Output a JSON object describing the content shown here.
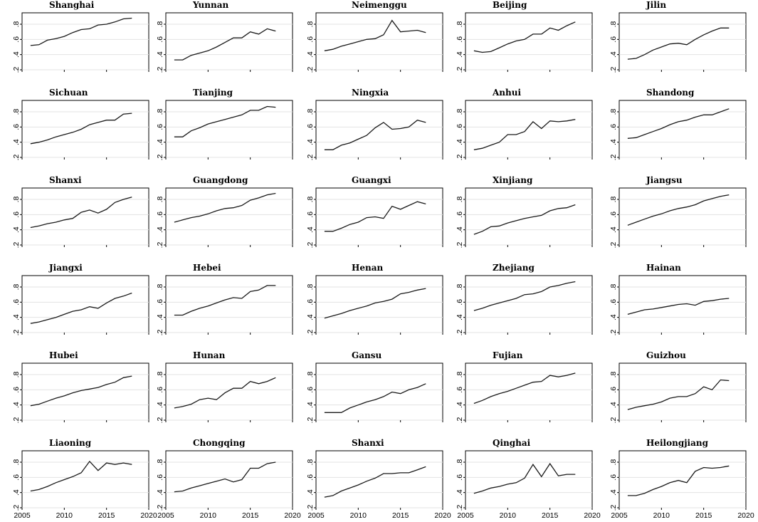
{
  "chart_data": {
    "type": "line",
    "layout": "small-multiples",
    "rows": 6,
    "cols": 5,
    "grid": true,
    "xlim": [
      2005,
      2020
    ],
    "ylim": [
      0.2,
      0.95
    ],
    "x_ticks": [
      2005,
      2010,
      2015,
      2020
    ],
    "x_tick_labels": [
      "2005",
      "2010",
      "2015",
      "2020"
    ],
    "y_ticks": [
      0.2,
      0.4,
      0.6,
      0.8
    ],
    "y_tick_labels": [
      ".2",
      ".4",
      ".6",
      ".8"
    ],
    "x": [
      2006,
      2007,
      2008,
      2009,
      2010,
      2011,
      2012,
      2013,
      2014,
      2015,
      2016,
      2017,
      2018
    ],
    "panels": [
      {
        "name": "Shanghai",
        "values": [
          0.52,
          0.53,
          0.59,
          0.61,
          0.64,
          0.69,
          0.73,
          0.74,
          0.79,
          0.8,
          0.83,
          0.87,
          0.88
        ]
      },
      {
        "name": "Yunnan",
        "values": [
          0.33,
          0.33,
          0.39,
          0.42,
          0.45,
          0.5,
          0.56,
          0.62,
          0.62,
          0.7,
          0.67,
          0.74,
          0.71
        ]
      },
      {
        "name": "Neimenggu",
        "values": [
          0.45,
          0.47,
          0.51,
          0.54,
          0.57,
          0.6,
          0.61,
          0.66,
          0.85,
          0.7,
          0.71,
          0.72,
          0.69
        ]
      },
      {
        "name": "Beijing",
        "values": [
          0.45,
          0.43,
          0.44,
          0.49,
          0.54,
          0.58,
          0.6,
          0.67,
          0.67,
          0.75,
          0.72,
          0.78,
          0.83
        ]
      },
      {
        "name": "Jilin",
        "values": [
          0.34,
          0.35,
          0.4,
          0.46,
          0.5,
          0.54,
          0.55,
          0.53,
          0.6,
          0.66,
          0.71,
          0.75,
          0.75
        ]
      },
      {
        "name": "Sichuan",
        "values": [
          0.38,
          0.4,
          0.43,
          0.47,
          0.5,
          0.53,
          0.57,
          0.63,
          0.66,
          0.69,
          0.69,
          0.77,
          0.78
        ]
      },
      {
        "name": "Tianjing",
        "values": [
          0.47,
          0.47,
          0.55,
          0.59,
          0.64,
          0.67,
          0.7,
          0.73,
          0.76,
          0.82,
          0.82,
          0.87,
          0.86
        ]
      },
      {
        "name": "Ningxia",
        "values": [
          0.3,
          0.3,
          0.36,
          0.39,
          0.44,
          0.49,
          0.59,
          0.66,
          0.57,
          0.58,
          0.6,
          0.69,
          0.66
        ]
      },
      {
        "name": "Anhui",
        "values": [
          0.3,
          0.32,
          0.36,
          0.4,
          0.5,
          0.5,
          0.54,
          0.67,
          0.58,
          0.68,
          0.67,
          0.68,
          0.7
        ]
      },
      {
        "name": "Shandong",
        "values": [
          0.45,
          0.46,
          0.5,
          0.54,
          0.58,
          0.63,
          0.67,
          0.69,
          0.73,
          0.76,
          0.76,
          0.8,
          0.84
        ]
      },
      {
        "name": "Shanxi",
        "values": [
          0.43,
          0.45,
          0.48,
          0.5,
          0.53,
          0.55,
          0.63,
          0.66,
          0.62,
          0.67,
          0.76,
          0.8,
          0.83
        ]
      },
      {
        "name": "Guangdong",
        "values": [
          0.5,
          0.53,
          0.56,
          0.58,
          0.61,
          0.65,
          0.68,
          0.69,
          0.72,
          0.79,
          0.82,
          0.86,
          0.88
        ]
      },
      {
        "name": "Guangxi",
        "values": [
          0.38,
          0.38,
          0.42,
          0.47,
          0.5,
          0.56,
          0.57,
          0.55,
          0.71,
          0.67,
          0.72,
          0.77,
          0.74
        ]
      },
      {
        "name": "Xinjiang",
        "values": [
          0.34,
          0.38,
          0.44,
          0.45,
          0.49,
          0.52,
          0.55,
          0.57,
          0.59,
          0.65,
          0.68,
          0.69,
          0.73
        ]
      },
      {
        "name": "Jiangsu",
        "values": [
          0.46,
          0.5,
          0.54,
          0.58,
          0.61,
          0.65,
          0.68,
          0.7,
          0.73,
          0.78,
          0.81,
          0.84,
          0.86
        ]
      },
      {
        "name": "Jiangxi",
        "values": [
          0.32,
          0.34,
          0.37,
          0.4,
          0.44,
          0.48,
          0.5,
          0.54,
          0.52,
          0.59,
          0.65,
          0.68,
          0.72
        ]
      },
      {
        "name": "Hebei",
        "values": [
          0.43,
          0.43,
          0.48,
          0.52,
          0.55,
          0.59,
          0.63,
          0.66,
          0.65,
          0.74,
          0.76,
          0.82,
          0.82
        ]
      },
      {
        "name": "Henan",
        "values": [
          0.39,
          0.42,
          0.45,
          0.49,
          0.52,
          0.55,
          0.59,
          0.61,
          0.64,
          0.71,
          0.73,
          0.76,
          0.78
        ]
      },
      {
        "name": "Zhejiang",
        "values": [
          0.49,
          0.52,
          0.56,
          0.59,
          0.62,
          0.65,
          0.7,
          0.71,
          0.74,
          0.8,
          0.82,
          0.85,
          0.87
        ]
      },
      {
        "name": "Hainan",
        "values": [
          0.44,
          0.47,
          0.5,
          0.51,
          0.53,
          0.55,
          0.57,
          0.58,
          0.56,
          0.61,
          0.62,
          0.64,
          0.65
        ]
      },
      {
        "name": "Hubei",
        "values": [
          0.39,
          0.41,
          0.45,
          0.49,
          0.52,
          0.56,
          0.59,
          0.61,
          0.63,
          0.67,
          0.7,
          0.76,
          0.78
        ]
      },
      {
        "name": "Hunan",
        "values": [
          0.36,
          0.38,
          0.41,
          0.47,
          0.49,
          0.47,
          0.56,
          0.62,
          0.62,
          0.71,
          0.68,
          0.71,
          0.76
        ]
      },
      {
        "name": "Gansu",
        "values": [
          0.3,
          0.3,
          0.3,
          0.36,
          0.4,
          0.44,
          0.47,
          0.51,
          0.57,
          0.55,
          0.6,
          0.63,
          0.68
        ]
      },
      {
        "name": "Fujian",
        "values": [
          0.42,
          0.46,
          0.51,
          0.55,
          0.58,
          0.62,
          0.66,
          0.7,
          0.71,
          0.79,
          0.77,
          0.79,
          0.82
        ]
      },
      {
        "name": "Guizhou",
        "values": [
          0.34,
          0.37,
          0.39,
          0.41,
          0.44,
          0.49,
          0.51,
          0.51,
          0.55,
          0.64,
          0.6,
          0.73,
          0.72
        ]
      },
      {
        "name": "Liaoning",
        "values": [
          0.42,
          0.44,
          0.48,
          0.53,
          0.57,
          0.61,
          0.66,
          0.81,
          0.69,
          0.79,
          0.77,
          0.79,
          0.77
        ]
      },
      {
        "name": "Chongqing",
        "values": [
          0.41,
          0.42,
          0.46,
          0.49,
          0.52,
          0.55,
          0.58,
          0.54,
          0.57,
          0.72,
          0.72,
          0.78,
          0.8
        ]
      },
      {
        "name": "Shanxi",
        "values": [
          0.34,
          0.36,
          0.42,
          0.46,
          0.5,
          0.55,
          0.59,
          0.65,
          0.65,
          0.66,
          0.66,
          0.7,
          0.74
        ]
      },
      {
        "name": "Qinghai",
        "values": [
          0.39,
          0.42,
          0.46,
          0.48,
          0.51,
          0.53,
          0.59,
          0.77,
          0.61,
          0.78,
          0.62,
          0.64,
          0.64
        ]
      },
      {
        "name": "Heilongjiang",
        "values": [
          0.36,
          0.36,
          0.39,
          0.44,
          0.48,
          0.53,
          0.56,
          0.53,
          0.68,
          0.73,
          0.72,
          0.73,
          0.75
        ]
      }
    ]
  }
}
